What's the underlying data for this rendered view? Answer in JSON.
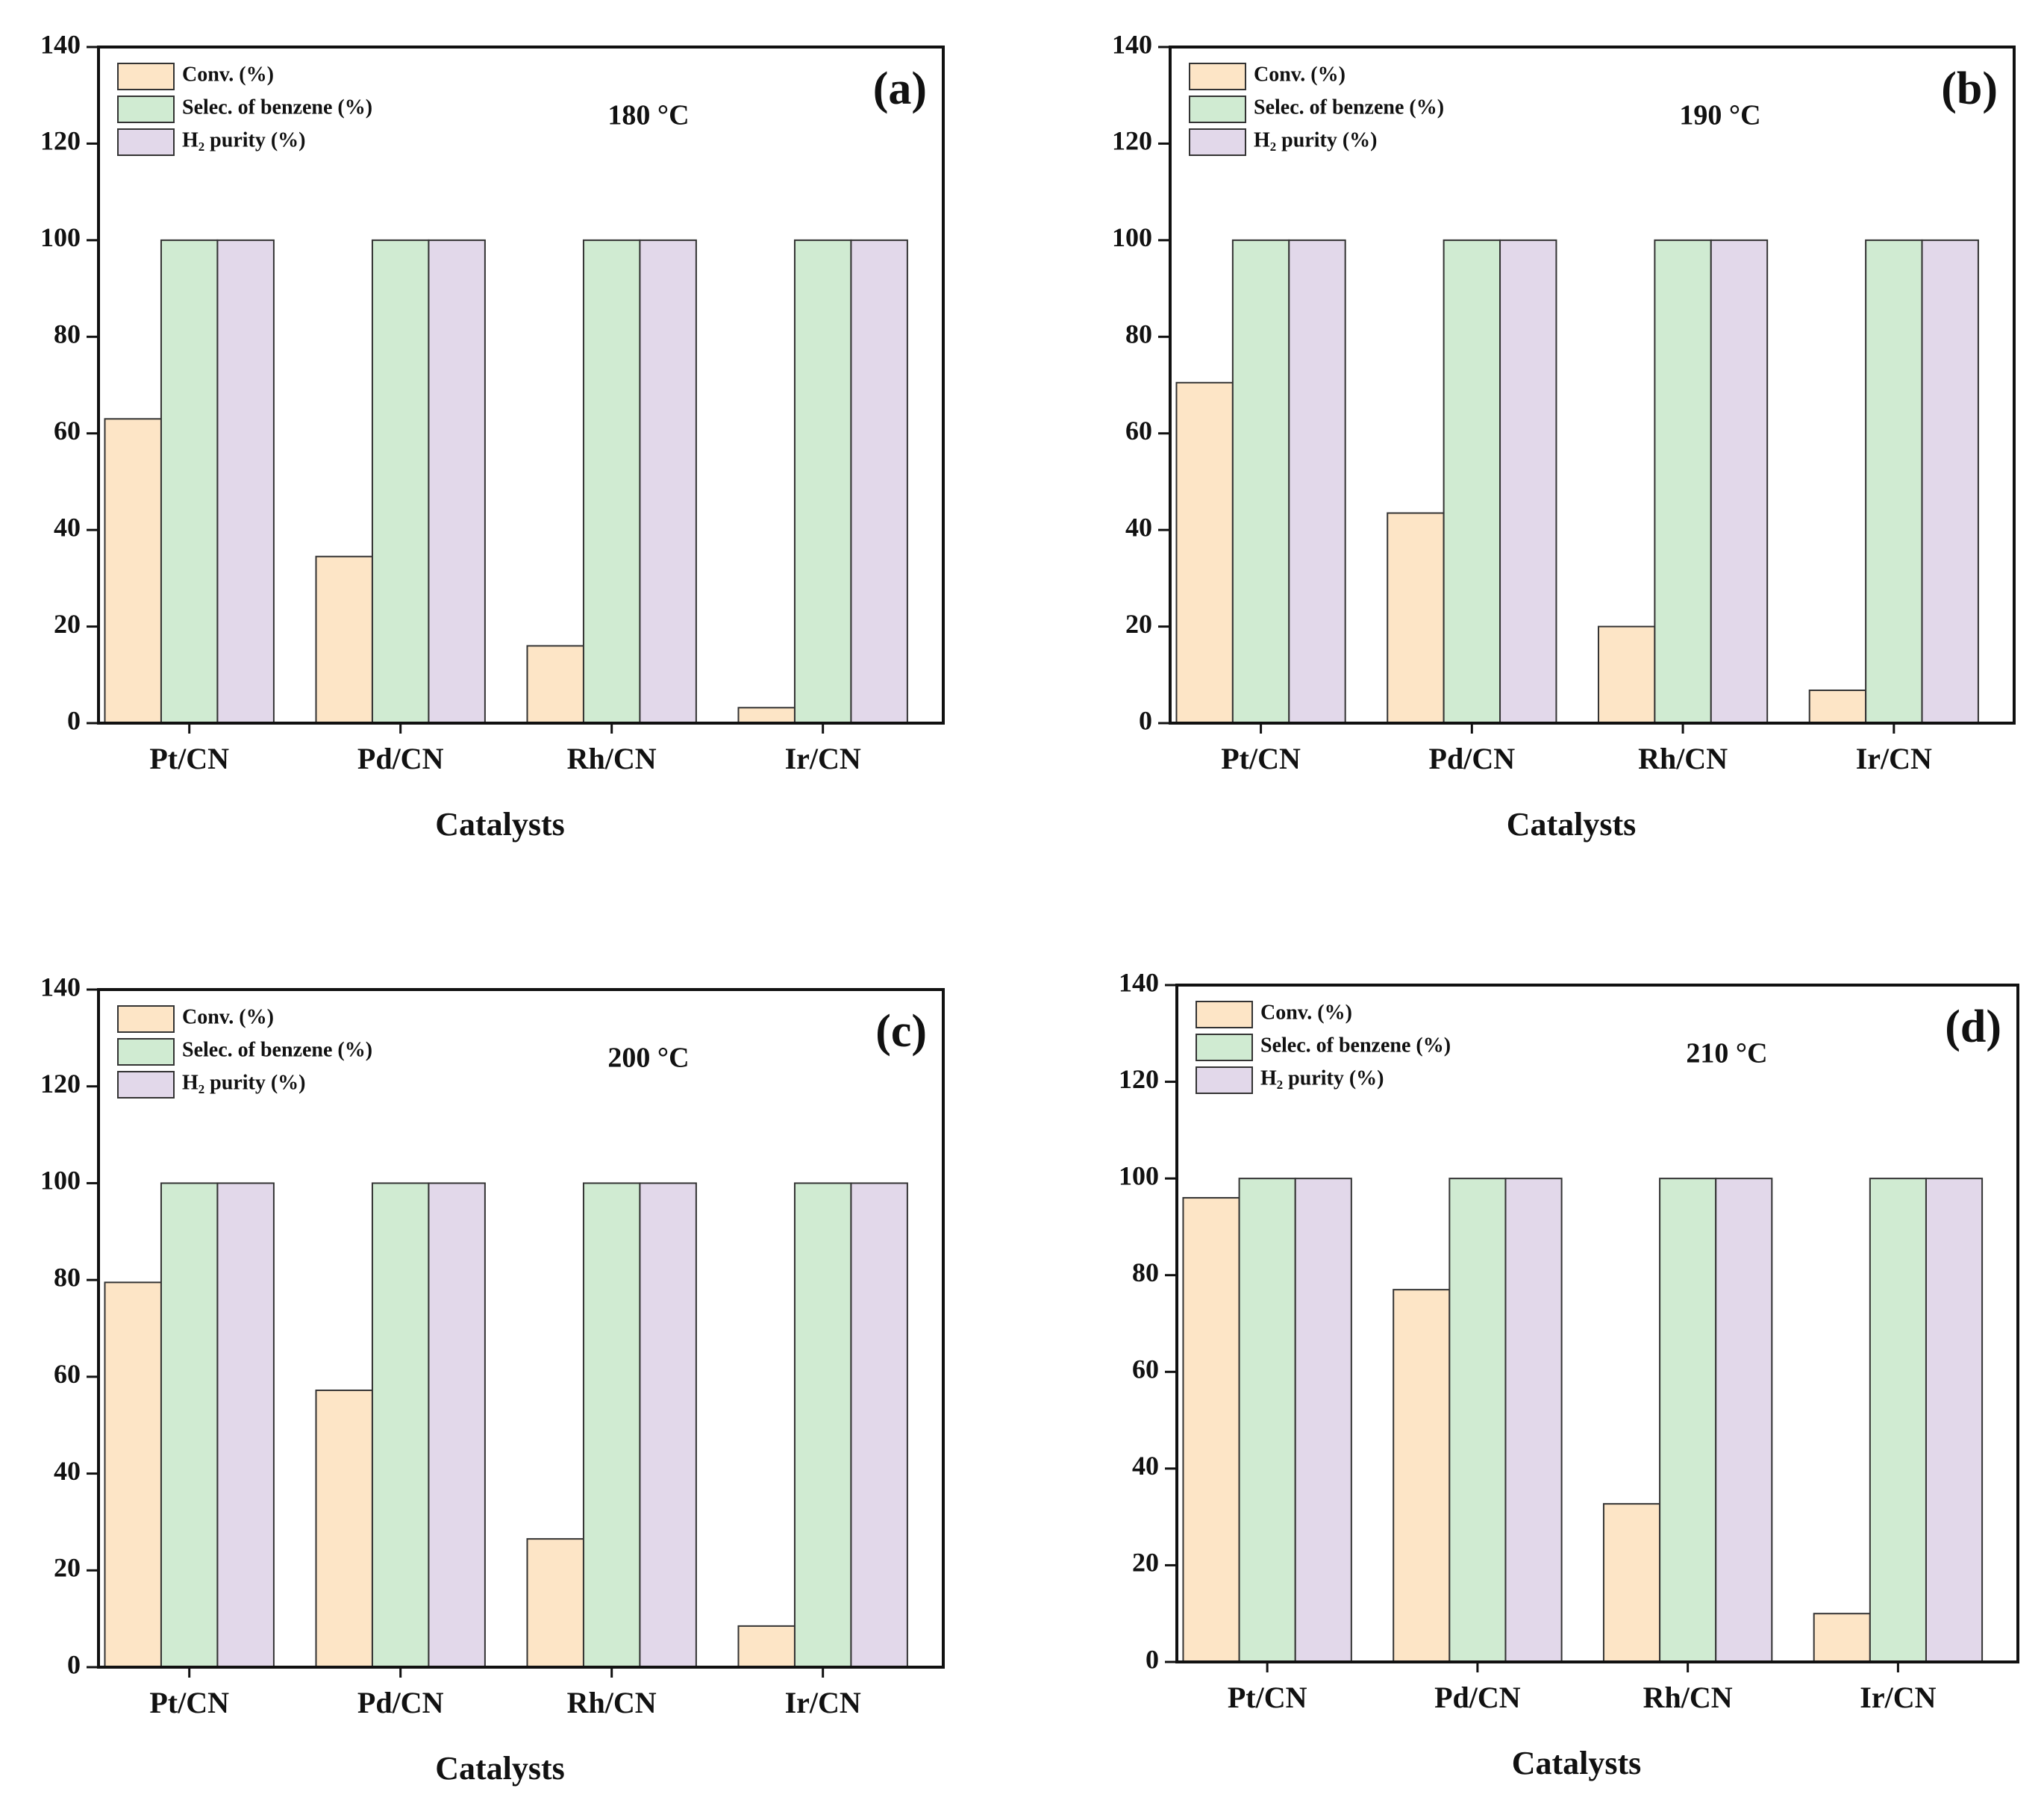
{
  "chart_data": [
    {
      "type": "bar",
      "panel_label": "(a)",
      "annotation": "180 °C",
      "x_label": "Catalysts",
      "categories": [
        "Pt/CN",
        "Pd/CN",
        "Rh/CN",
        "Ir/CN"
      ],
      "series": [
        {
          "name": "Conv. (%)",
          "color": "#fde5c6",
          "values": [
            63,
            34.5,
            16,
            3.2
          ]
        },
        {
          "name": "Selec. of benzene (%)",
          "color": "#d0ebd2",
          "values": [
            100,
            100,
            100,
            100
          ]
        },
        {
          "name": "H₂ purity (%)",
          "color": "#e2d8ea",
          "values": [
            100,
            100,
            100,
            100
          ]
        }
      ],
      "ylim": [
        0,
        140
      ],
      "yticks": [
        0,
        20,
        40,
        60,
        80,
        100,
        120,
        140
      ]
    },
    {
      "type": "bar",
      "panel_label": "(b)",
      "annotation": "190 °C",
      "x_label": "Catalysts",
      "categories": [
        "Pt/CN",
        "Pd/CN",
        "Rh/CN",
        "Ir/CN"
      ],
      "series": [
        {
          "name": "Conv. (%)",
          "color": "#fde5c6",
          "values": [
            70.5,
            43.5,
            20,
            6.8
          ]
        },
        {
          "name": "Selec. of benzene (%)",
          "color": "#d0ebd2",
          "values": [
            100,
            100,
            100,
            100
          ]
        },
        {
          "name": "H₂ purity (%)",
          "color": "#e2d8ea",
          "values": [
            100,
            100,
            100,
            100
          ]
        }
      ],
      "ylim": [
        0,
        140
      ],
      "yticks": [
        0,
        20,
        40,
        60,
        80,
        100,
        120,
        140
      ]
    },
    {
      "type": "bar",
      "panel_label": "(c)",
      "annotation": "200 °C",
      "x_label": "Catalysts",
      "categories": [
        "Pt/CN",
        "Pd/CN",
        "Rh/CN",
        "Ir/CN"
      ],
      "series": [
        {
          "name": "Conv. (%)",
          "color": "#fde5c6",
          "values": [
            79.5,
            57.2,
            26.5,
            8.5
          ]
        },
        {
          "name": "Selec. of benzene (%)",
          "color": "#d0ebd2",
          "values": [
            100,
            100,
            100,
            100
          ]
        },
        {
          "name": "H₂ purity (%)",
          "color": "#e2d8ea",
          "values": [
            100,
            100,
            100,
            100
          ]
        }
      ],
      "ylim": [
        0,
        140
      ],
      "yticks": [
        0,
        20,
        40,
        60,
        80,
        100,
        120,
        140
      ]
    },
    {
      "type": "bar",
      "panel_label": "(d)",
      "annotation": "210 °C",
      "x_label": "Catalysts",
      "categories": [
        "Pt/CN",
        "Pd/CN",
        "Rh/CN",
        "Ir/CN"
      ],
      "series": [
        {
          "name": "Conv. (%)",
          "color": "#fde5c6",
          "values": [
            96,
            77,
            32.7,
            10
          ]
        },
        {
          "name": "Selec. of benzene (%)",
          "color": "#d0ebd2",
          "values": [
            100,
            100,
            100,
            100
          ]
        },
        {
          "name": "H₂ purity (%)",
          "color": "#e2d8ea",
          "values": [
            100,
            100,
            100,
            100
          ]
        }
      ],
      "ylim": [
        0,
        140
      ],
      "yticks": [
        0,
        20,
        40,
        60,
        80,
        100,
        120,
        140
      ]
    }
  ]
}
